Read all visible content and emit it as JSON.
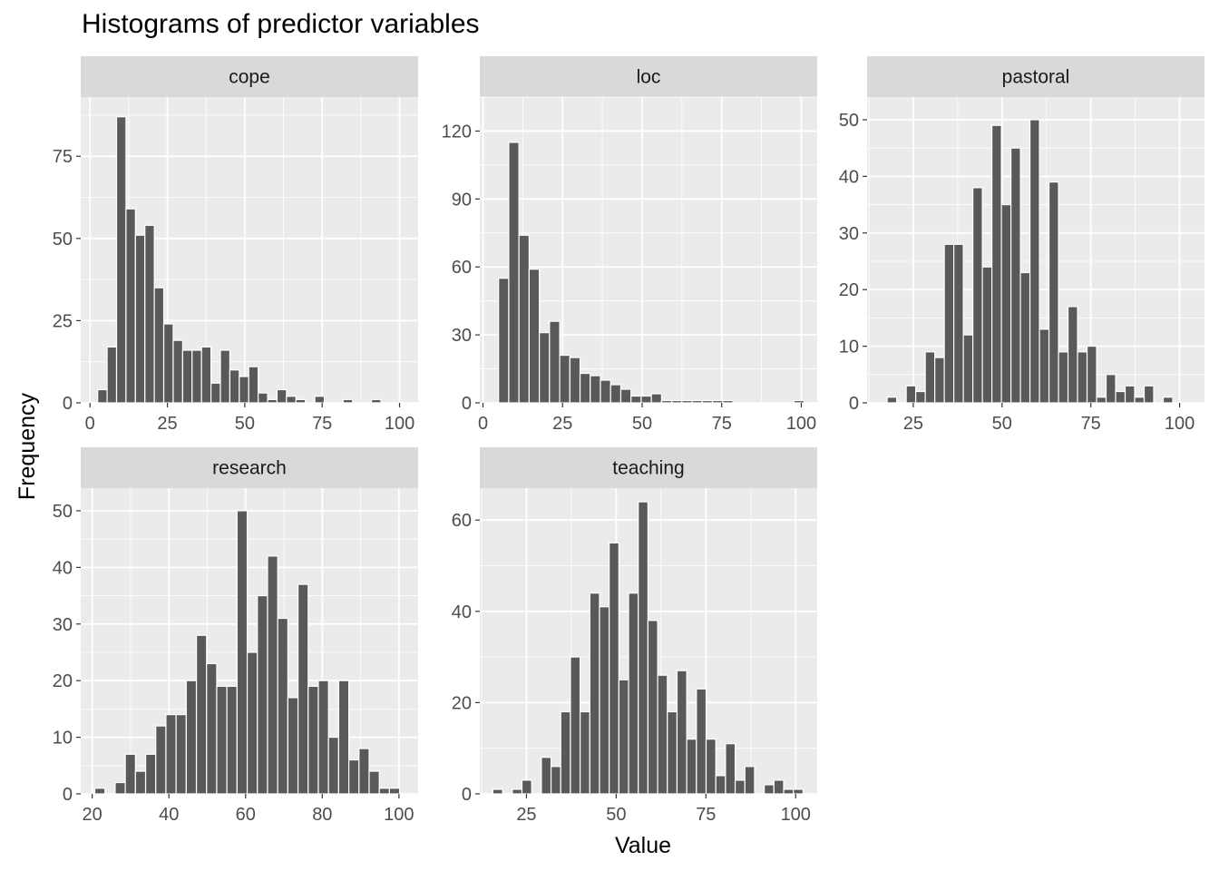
{
  "chart_data": {
    "type": "bar",
    "title": "Histograms of predictor variables",
    "xlabel": "Value",
    "ylabel": "Frequency",
    "facets": [
      {
        "name": "cope",
        "xlim": [
          -3,
          106
        ],
        "ylim": [
          0,
          93
        ],
        "xticks": [
          0,
          25,
          50,
          75,
          100
        ],
        "yticks": [
          0,
          25,
          50,
          75
        ],
        "binwidth": 3.05,
        "bins": [
          {
            "x": 4,
            "count": 4
          },
          {
            "x": 7.05,
            "count": 17
          },
          {
            "x": 10.1,
            "count": 87
          },
          {
            "x": 13.15,
            "count": 59
          },
          {
            "x": 16.2,
            "count": 51
          },
          {
            "x": 19.25,
            "count": 54
          },
          {
            "x": 22.3,
            "count": 35
          },
          {
            "x": 25.35,
            "count": 24
          },
          {
            "x": 28.4,
            "count": 19
          },
          {
            "x": 31.45,
            "count": 16
          },
          {
            "x": 34.5,
            "count": 16
          },
          {
            "x": 37.55,
            "count": 17
          },
          {
            "x": 40.6,
            "count": 6
          },
          {
            "x": 43.65,
            "count": 16
          },
          {
            "x": 46.7,
            "count": 10
          },
          {
            "x": 49.75,
            "count": 8
          },
          {
            "x": 52.8,
            "count": 11
          },
          {
            "x": 55.85,
            "count": 3
          },
          {
            "x": 58.9,
            "count": 1
          },
          {
            "x": 61.95,
            "count": 4
          },
          {
            "x": 65,
            "count": 2
          },
          {
            "x": 68.05,
            "count": 1
          },
          {
            "x": 74.15,
            "count": 2
          },
          {
            "x": 83.3,
            "count": 1
          },
          {
            "x": 92.45,
            "count": 1
          }
        ]
      },
      {
        "name": "loc",
        "xlim": [
          -1,
          105
        ],
        "ylim": [
          0,
          135
        ],
        "xticks": [
          0,
          25,
          50,
          75,
          100
        ],
        "yticks": [
          0,
          30,
          60,
          90,
          120
        ],
        "binwidth": 3.2,
        "bins": [
          {
            "x": 6.5,
            "count": 55
          },
          {
            "x": 9.7,
            "count": 115
          },
          {
            "x": 12.9,
            "count": 74
          },
          {
            "x": 16.1,
            "count": 59
          },
          {
            "x": 19.3,
            "count": 31
          },
          {
            "x": 22.5,
            "count": 36
          },
          {
            "x": 25.7,
            "count": 21
          },
          {
            "x": 28.9,
            "count": 20
          },
          {
            "x": 32.1,
            "count": 13
          },
          {
            "x": 35.3,
            "count": 12
          },
          {
            "x": 38.5,
            "count": 10
          },
          {
            "x": 41.7,
            "count": 8
          },
          {
            "x": 44.9,
            "count": 6
          },
          {
            "x": 48.1,
            "count": 3
          },
          {
            "x": 51.3,
            "count": 3
          },
          {
            "x": 54.5,
            "count": 4
          },
          {
            "x": 57.7,
            "count": 1
          },
          {
            "x": 60.9,
            "count": 1
          },
          {
            "x": 64.1,
            "count": 1
          },
          {
            "x": 67.3,
            "count": 1
          },
          {
            "x": 70.5,
            "count": 1
          },
          {
            "x": 73.7,
            "count": 1
          },
          {
            "x": 76.9,
            "count": 1
          },
          {
            "x": 99.3,
            "count": 1
          }
        ]
      },
      {
        "name": "pastoral",
        "xlim": [
          12,
          107
        ],
        "ylim": [
          0,
          54
        ],
        "xticks": [
          25,
          50,
          75,
          100
        ],
        "yticks": [
          0,
          10,
          20,
          30,
          40,
          50
        ],
        "binwidth": 2.68,
        "bins": [
          {
            "x": 19,
            "count": 1
          },
          {
            "x": 24.36,
            "count": 3
          },
          {
            "x": 27.04,
            "count": 2
          },
          {
            "x": 29.72,
            "count": 9
          },
          {
            "x": 32.4,
            "count": 8
          },
          {
            "x": 35.08,
            "count": 28
          },
          {
            "x": 37.76,
            "count": 28
          },
          {
            "x": 40.44,
            "count": 12
          },
          {
            "x": 43.12,
            "count": 38
          },
          {
            "x": 45.8,
            "count": 24
          },
          {
            "x": 48.48,
            "count": 49
          },
          {
            "x": 51.16,
            "count": 35
          },
          {
            "x": 53.84,
            "count": 45
          },
          {
            "x": 56.52,
            "count": 23
          },
          {
            "x": 59.2,
            "count": 50
          },
          {
            "x": 61.88,
            "count": 13
          },
          {
            "x": 64.56,
            "count": 39
          },
          {
            "x": 67.24,
            "count": 9
          },
          {
            "x": 69.92,
            "count": 17
          },
          {
            "x": 72.6,
            "count": 9
          },
          {
            "x": 75.28,
            "count": 10
          },
          {
            "x": 77.96,
            "count": 1
          },
          {
            "x": 80.64,
            "count": 5
          },
          {
            "x": 83.32,
            "count": 2
          },
          {
            "x": 86,
            "count": 3
          },
          {
            "x": 88.68,
            "count": 1
          },
          {
            "x": 91.36,
            "count": 3
          },
          {
            "x": 96.72,
            "count": 1
          }
        ]
      },
      {
        "name": "research",
        "xlim": [
          17,
          105
        ],
        "ylim": [
          0,
          54
        ],
        "xticks": [
          20,
          40,
          60,
          80,
          100
        ],
        "yticks": [
          0,
          10,
          20,
          30,
          40,
          50
        ],
        "binwidth": 2.65,
        "bins": [
          {
            "x": 22,
            "count": 1
          },
          {
            "x": 27.3,
            "count": 2
          },
          {
            "x": 29.95,
            "count": 7
          },
          {
            "x": 32.6,
            "count": 4
          },
          {
            "x": 35.25,
            "count": 7
          },
          {
            "x": 37.9,
            "count": 12
          },
          {
            "x": 40.55,
            "count": 14
          },
          {
            "x": 43.2,
            "count": 14
          },
          {
            "x": 45.85,
            "count": 20
          },
          {
            "x": 48.5,
            "count": 28
          },
          {
            "x": 51.15,
            "count": 23
          },
          {
            "x": 53.8,
            "count": 19
          },
          {
            "x": 56.45,
            "count": 19
          },
          {
            "x": 59.1,
            "count": 50
          },
          {
            "x": 61.75,
            "count": 25
          },
          {
            "x": 64.4,
            "count": 35
          },
          {
            "x": 67.05,
            "count": 42
          },
          {
            "x": 69.7,
            "count": 31
          },
          {
            "x": 72.35,
            "count": 17
          },
          {
            "x": 75,
            "count": 37
          },
          {
            "x": 77.65,
            "count": 19
          },
          {
            "x": 80.3,
            "count": 20
          },
          {
            "x": 82.95,
            "count": 10
          },
          {
            "x": 85.6,
            "count": 20
          },
          {
            "x": 88.25,
            "count": 6
          },
          {
            "x": 90.9,
            "count": 8
          },
          {
            "x": 93.55,
            "count": 4
          },
          {
            "x": 96.2,
            "count": 1
          },
          {
            "x": 98.85,
            "count": 1
          }
        ]
      },
      {
        "name": "teaching",
        "xlim": [
          12,
          106
        ],
        "ylim": [
          0,
          67
        ],
        "xticks": [
          25,
          50,
          75,
          100
        ],
        "yticks": [
          0,
          20,
          40,
          60
        ],
        "binwidth": 2.7,
        "bins": [
          {
            "x": 17,
            "count": 1
          },
          {
            "x": 22.4,
            "count": 1
          },
          {
            "x": 25.1,
            "count": 3
          },
          {
            "x": 30.5,
            "count": 8
          },
          {
            "x": 33.2,
            "count": 6
          },
          {
            "x": 35.9,
            "count": 18
          },
          {
            "x": 38.6,
            "count": 30
          },
          {
            "x": 41.3,
            "count": 18
          },
          {
            "x": 44,
            "count": 44
          },
          {
            "x": 46.7,
            "count": 41
          },
          {
            "x": 49.4,
            "count": 55
          },
          {
            "x": 52.1,
            "count": 25
          },
          {
            "x": 54.8,
            "count": 44
          },
          {
            "x": 57.5,
            "count": 64
          },
          {
            "x": 60.2,
            "count": 38
          },
          {
            "x": 62.9,
            "count": 26
          },
          {
            "x": 65.6,
            "count": 18
          },
          {
            "x": 68.3,
            "count": 27
          },
          {
            "x": 71,
            "count": 12
          },
          {
            "x": 73.7,
            "count": 23
          },
          {
            "x": 76.4,
            "count": 12
          },
          {
            "x": 79.1,
            "count": 4
          },
          {
            "x": 81.8,
            "count": 11
          },
          {
            "x": 84.5,
            "count": 3
          },
          {
            "x": 87.2,
            "count": 6
          },
          {
            "x": 92.6,
            "count": 2
          },
          {
            "x": 95.3,
            "count": 3
          },
          {
            "x": 98,
            "count": 1
          },
          {
            "x": 100.7,
            "count": 1
          }
        ]
      }
    ]
  },
  "colors": {
    "bar_fill": "#595959",
    "bar_outline": "#ffffff",
    "panel_background": "#ebebeb",
    "strip_background": "#d9d9d9",
    "grid_major": "#ffffff",
    "tick_text": "#4d4d4d"
  }
}
